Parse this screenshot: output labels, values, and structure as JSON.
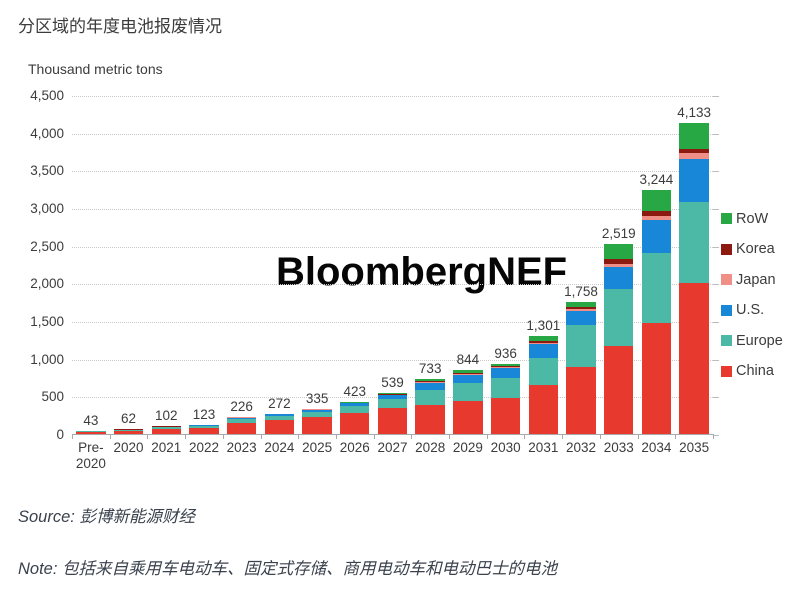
{
  "header": {
    "title": "分区域的年度电池报废情况"
  },
  "watermark": {
    "text": "BloombergNEF"
  },
  "chart_data": {
    "type": "bar",
    "stacked": true,
    "title": "分区域的年度电池报废情况",
    "y_axis_title": "Thousand metric tons",
    "ylim": [
      0,
      4500
    ],
    "y_tick_step": 500,
    "y_tick_labels": [
      "0",
      "500",
      "1,000",
      "1,500",
      "2,000",
      "2,500",
      "3,000",
      "3,500",
      "4,000",
      "4,500"
    ],
    "grid": "horizontal dotted",
    "legend_position": "right",
    "categories": [
      "Pre- 2020",
      "2020",
      "2021",
      "2022",
      "2023",
      "2024",
      "2025",
      "2026",
      "2027",
      "2028",
      "2029",
      "2030",
      "2031",
      "2032",
      "2033",
      "2034",
      "2035"
    ],
    "total_labels": [
      "43",
      "62",
      "102",
      "123",
      "226",
      "272",
      "335",
      "423",
      "539",
      "733",
      "844",
      "936",
      "1,301",
      "1,758",
      "2,519",
      "3,244",
      "4,133"
    ],
    "totals": [
      43,
      62,
      102,
      123,
      226,
      272,
      335,
      423,
      539,
      733,
      844,
      936,
      1301,
      1758,
      2519,
      3244,
      4133
    ],
    "series": [
      {
        "name": "China",
        "color": "#e8392e",
        "values": [
          30,
          44,
          72,
          86,
          150,
          180,
          222,
          280,
          350,
          390,
          440,
          480,
          650,
          885,
          1172,
          1480,
          2000
        ]
      },
      {
        "name": "Europe",
        "color": "#4cb8a6",
        "values": [
          9,
          12,
          20,
          24,
          50,
          60,
          75,
          95,
          120,
          200,
          235,
          265,
          360,
          560,
          752,
          925,
          1080
        ]
      },
      {
        "name": "U.S.",
        "color": "#1887d8",
        "values": [
          2,
          3,
          6,
          8,
          18,
          23,
          28,
          35,
          50,
          90,
          110,
          125,
          180,
          185,
          288,
          440,
          570
        ]
      },
      {
        "name": "Japan",
        "color": "#ef8f88",
        "values": [
          1,
          1,
          1,
          1,
          2,
          2,
          3,
          3,
          4,
          15,
          15,
          15,
          25,
          30,
          44,
          44,
          80
        ]
      },
      {
        "name": "Korea",
        "color": "#8c1a10",
        "values": [
          1,
          1,
          2,
          2,
          3,
          3,
          3,
          4,
          5,
          15,
          15,
          16,
          26,
          33,
          64,
          66,
          53
        ]
      },
      {
        "name": "RoW",
        "color": "#28a745",
        "values": [
          0,
          1,
          1,
          2,
          3,
          4,
          4,
          6,
          10,
          23,
          29,
          35,
          60,
          65,
          199,
          289,
          350
        ]
      }
    ],
    "legend_order": [
      "RoW",
      "Korea",
      "Japan",
      "U.S.",
      "Europe",
      "China"
    ]
  },
  "footer": {
    "source": "Source: 彭博新能源财经",
    "note": "Note: 包括来自乘用车电动车、固定式存储、商用电动车和电动巴士的电池"
  }
}
